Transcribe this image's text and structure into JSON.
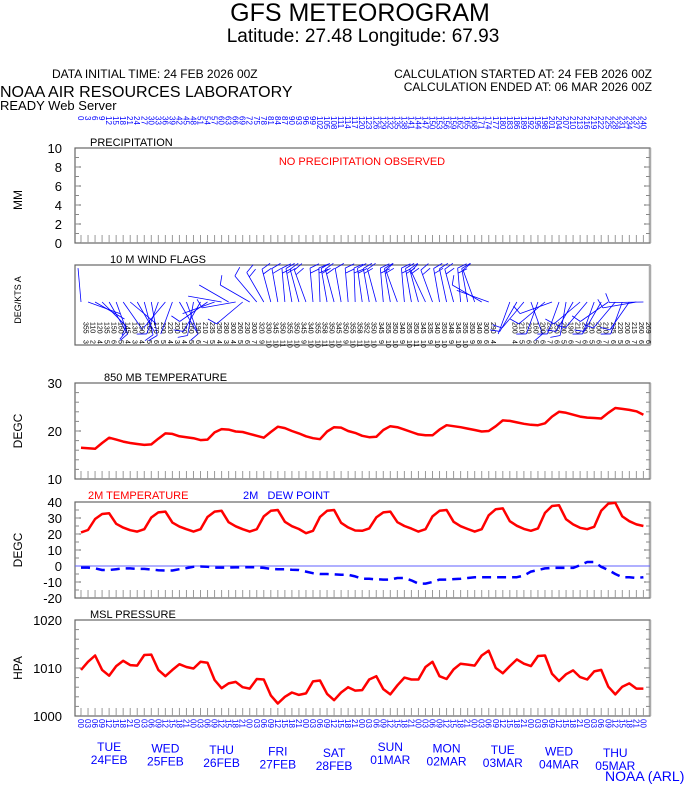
{
  "header": {
    "title": "GFS METEOROGRAM",
    "location": "Latitude: 27.48 Longitude:  67.93",
    "data_initial_time": "DATA INITIAL TIME: 24 FEB 2026 00Z",
    "calc_started": "CALCULATION STARTED AT: 24 FEB 2026 00Z",
    "calc_ended": "CALCULATION ENDED AT: 06 MAR 2026 00Z",
    "org": "NOAA AIR RESOURCES LABORATORY",
    "server": "READY Web Server",
    "footer": "NOAA (ARL)"
  },
  "colors": {
    "temperature": "#ff0000",
    "dew_point": "#0000ff",
    "wind": "#0000ff",
    "axis_labels": "#0000ff"
  },
  "chart_data": [
    {
      "type": "bar",
      "title": "PRECIPITATION",
      "ylabel": "MM",
      "ylim": [
        0,
        10
      ],
      "yticks": [
        "0",
        "2",
        "4",
        "6",
        "8",
        "10"
      ],
      "annotation": "NO PRECIPITATION OBSERVED",
      "values": []
    },
    {
      "type": "scatter",
      "title": "10 M  WIND FLAGS",
      "ylabel": "DEG/KTS  A",
      "direction_deg": [
        355,
        110,
        120,
        135,
        150,
        160,
        145,
        130,
        150,
        165,
        170,
        200,
        220,
        200,
        150,
        160,
        190,
        210,
        235,
        250,
        280,
        300,
        260,
        230,
        300,
        320,
        330,
        345,
        350,
        355,
        350,
        345,
        340,
        355,
        358,
        350,
        345,
        350,
        355,
        358,
        352,
        350,
        345,
        355,
        350,
        340,
        355,
        350,
        345,
        335,
        340,
        350,
        348,
        345,
        355,
        350,
        340,
        300,
        290,
        8,
        10,
        200,
        210,
        220,
        160,
        200,
        230,
        250,
        200,
        190,
        210,
        230,
        220,
        200,
        210,
        235,
        220,
        200,
        215,
        260,
        269
      ],
      "speed_kts": [
        3,
        2,
        4,
        5,
        6,
        5,
        4,
        3,
        4,
        5,
        6,
        5,
        4,
        3,
        4,
        5,
        6,
        7,
        5,
        4,
        3,
        4,
        5,
        6,
        7,
        9,
        10,
        10,
        11,
        10,
        10,
        9,
        10,
        10,
        11,
        10,
        10,
        9,
        10,
        11,
        10,
        10,
        9,
        10,
        10,
        9,
        10,
        11,
        10,
        9,
        10,
        10,
        9,
        10,
        10,
        9,
        8,
        6,
        4,
        1,
        1,
        4,
        5,
        6,
        5,
        6,
        7,
        6,
        5,
        6,
        7,
        6,
        5,
        6,
        7,
        6,
        5,
        6,
        7,
        6,
        6
      ]
    },
    {
      "type": "line",
      "title": "850 MB  TEMPERATURE",
      "ylabel": "DEGC",
      "ylim": [
        10,
        30
      ],
      "yticks": [
        "10",
        "20",
        "30"
      ],
      "values": [
        16.5,
        16.4,
        16.3,
        17.5,
        18.6,
        18.2,
        17.8,
        17.5,
        17.3,
        17.1,
        17.2,
        18.4,
        19.5,
        19.4,
        18.9,
        18.7,
        18.5,
        18.1,
        18.2,
        19.7,
        20.4,
        20.3,
        19.9,
        19.8,
        19.4,
        19.0,
        18.6,
        19.8,
        20.9,
        20.6,
        20.0,
        19.5,
        18.9,
        18.5,
        18.3,
        19.9,
        20.8,
        20.7,
        20.0,
        19.6,
        19.0,
        18.7,
        18.8,
        20.2,
        21.0,
        20.8,
        20.3,
        19.8,
        19.3,
        19.1,
        19.1,
        20.3,
        21.2,
        21.0,
        20.8,
        20.5,
        20.2,
        19.9,
        20.0,
        21.0,
        22.2,
        22.1,
        21.8,
        21.5,
        21.3,
        21.2,
        21.6,
        23.0,
        24.0,
        23.8,
        23.4,
        23.0,
        22.8,
        22.7,
        22.6,
        23.8,
        24.8,
        24.6,
        24.4,
        24.1,
        23.4
      ]
    },
    {
      "type": "line",
      "ylabel": "DEGC",
      "ylim": [
        -20,
        40
      ],
      "yticks": [
        "-20",
        "-10",
        "0",
        "10",
        "20",
        "30",
        "40"
      ],
      "series": [
        {
          "name": "2M TEMPERATURE",
          "values": [
            21,
            22.5,
            29.4,
            32.5,
            33,
            26.4,
            24,
            22.4,
            21.5,
            23,
            30.3,
            33.5,
            34,
            27.1,
            24.6,
            23,
            21.5,
            23,
            30.6,
            34,
            34.5,
            27.4,
            24.8,
            23,
            21.5,
            23,
            31,
            34.5,
            35,
            27.6,
            24.9,
            23.1,
            20.5,
            22,
            30.7,
            34.5,
            35,
            27,
            24.1,
            22.2,
            22,
            23.5,
            30.4,
            33.5,
            34,
            27.4,
            25,
            23.4,
            21.5,
            23,
            31,
            34.5,
            35,
            27.6,
            24.9,
            23.1,
            21.5,
            23,
            31.7,
            35.5,
            36,
            28,
            25.1,
            23.2,
            22,
            23.5,
            33.2,
            37.5,
            38,
            29.2,
            26,
            23.9,
            23,
            24.5,
            34.5,
            39,
            39.5,
            31,
            28,
            26,
            25
          ]
        },
        {
          "name": "2M   DEW POINT",
          "values": [
            -1,
            -1,
            -1.5,
            -2.5,
            -2.5,
            -2,
            -1.5,
            -1.5,
            -1.8,
            -1.8,
            -2.2,
            -2.6,
            -2.8,
            -2.8,
            -2,
            -1.3,
            -0.5,
            -0.3,
            -0.5,
            -1,
            -1,
            -1,
            -0.9,
            -0.8,
            -0.8,
            -0.8,
            -1.2,
            -1.8,
            -2,
            -2,
            -2.3,
            -2.5,
            -3.5,
            -4.5,
            -5,
            -5,
            -5.2,
            -5.5,
            -5.5,
            -6.5,
            -8,
            -8,
            -8.3,
            -8.5,
            -8.5,
            -7.5,
            -7.5,
            -9,
            -11,
            -11,
            -10,
            -8.5,
            -8.5,
            -8.2,
            -8,
            -7.5,
            -7,
            -7,
            -7,
            -7,
            -7,
            -7,
            -7,
            -6,
            -3.5,
            -2.5,
            -1.5,
            -1.2,
            -1.2,
            -1.2,
            -1.2,
            0.5,
            2.5,
            2.5,
            -0.5,
            -2.5,
            -5,
            -7,
            -7,
            -7.5,
            -7
          ]
        }
      ]
    },
    {
      "type": "line",
      "title": "MSL PRESSURE",
      "ylabel": "HPA",
      "ylim": [
        1000,
        1020
      ],
      "yticks": [
        "1000",
        "1010",
        "1020"
      ],
      "values": [
        1009.6,
        1011.3,
        1012.6,
        1009.6,
        1008.4,
        1010.4,
        1011.5,
        1010.6,
        1010.5,
        1012.7,
        1012.8,
        1009.6,
        1008.3,
        1009.6,
        1010.8,
        1010.2,
        1009.9,
        1011.3,
        1011.1,
        1007.5,
        1005.8,
        1006.8,
        1007.1,
        1006.0,
        1005.7,
        1007.7,
        1007.6,
        1004.3,
        1002.6,
        1004.0,
        1004.9,
        1004.4,
        1004.7,
        1007.2,
        1007.4,
        1004.6,
        1003.3,
        1004.9,
        1006.0,
        1005.3,
        1005.4,
        1007.6,
        1008.3,
        1005.6,
        1004.5,
        1006.4,
        1008.0,
        1007.6,
        1007.6,
        1010.2,
        1011.3,
        1008.3,
        1007.7,
        1009.7,
        1010.9,
        1010.7,
        1010.5,
        1012.6,
        1013.6,
        1010.0,
        1008.9,
        1010.4,
        1011.8,
        1010.9,
        1010.4,
        1012.5,
        1012.6,
        1008.8,
        1007.3,
        1008.7,
        1009.5,
        1008.1,
        1007.6,
        1009.3,
        1009.6,
        1006.1,
        1004.5,
        1006.1,
        1006.8,
        1005.7,
        1005.7
      ]
    }
  ],
  "x_axis": {
    "forecast_hours": [
      "0",
      "3",
      "6",
      "9",
      "12",
      "15",
      "18",
      "21",
      "24",
      "27",
      "30",
      "33",
      "36",
      "39",
      "42",
      "45",
      "48",
      "51",
      "54",
      "57",
      "60",
      "63",
      "66",
      "69",
      "72",
      "75",
      "78",
      "81",
      "84",
      "87",
      "90",
      "93",
      "96",
      "99",
      "102",
      "105",
      "108",
      "111",
      "114",
      "117",
      "120",
      "123",
      "126",
      "129",
      "132",
      "135",
      "138",
      "141",
      "144",
      "147",
      "150",
      "153",
      "156",
      "159",
      "162",
      "165",
      "168",
      "171",
      "174",
      "177",
      "180",
      "183",
      "186",
      "189",
      "192",
      "195",
      "198",
      "201",
      "204",
      "207",
      "210",
      "213",
      "216",
      "219",
      "222",
      "225",
      "228",
      "231",
      "234",
      "237",
      "240"
    ],
    "utc_hours": [
      "00",
      "03",
      "06",
      "09",
      "12",
      "15",
      "18",
      "21"
    ],
    "days": [
      {
        "day": "TUE",
        "date": "24FEB"
      },
      {
        "day": "WED",
        "date": "25FEB"
      },
      {
        "day": "THU",
        "date": "26FEB"
      },
      {
        "day": "FRI",
        "date": "27FEB"
      },
      {
        "day": "SAT",
        "date": "28FEB"
      },
      {
        "day": "SUN",
        "date": "01MAR"
      },
      {
        "day": "MON",
        "date": "02MAR"
      },
      {
        "day": "TUE",
        "date": "03MAR"
      },
      {
        "day": "WED",
        "date": "04MAR"
      },
      {
        "day": "THU",
        "date": "05MAR"
      }
    ]
  }
}
